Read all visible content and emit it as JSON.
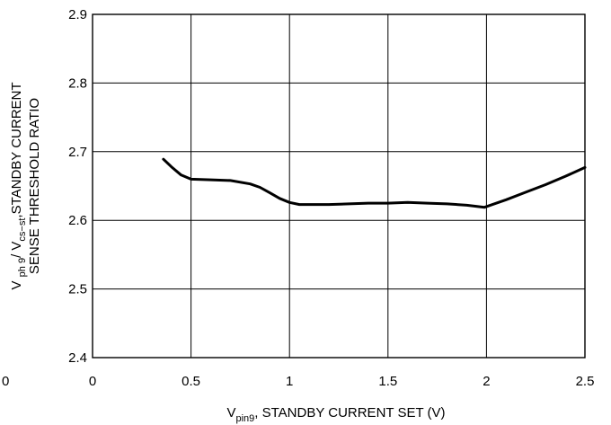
{
  "chart_data": {
    "type": "line",
    "x_ticks": [
      "0",
      "0.5",
      "1",
      "1.5",
      "2",
      "2.5"
    ],
    "y_ticks": [
      "2.4",
      "2.5",
      "2.6",
      "2.7",
      "2.8",
      "2.9"
    ],
    "x_tick_values": [
      0,
      0.5,
      1,
      1.5,
      2,
      2.5
    ],
    "y_tick_values": [
      2.4,
      2.5,
      2.6,
      2.7,
      2.8,
      2.9
    ],
    "stray_label": "0",
    "xlim": [
      0,
      2.5
    ],
    "ylim": [
      2.4,
      2.9
    ],
    "grid": true,
    "xlabel": {
      "pre": "V",
      "sub": "pin9",
      "post": ", STANDBY CURRENT SET (V)"
    },
    "ylabel": {
      "line1": {
        "v1": "V ",
        "sub1": "ph 9",
        "mid": "/ V",
        "sub2": "cs−st",
        "post": ",STANDBY CURRENT"
      },
      "line2": "SENSE THRESHOLD RATIO"
    },
    "series": [
      {
        "x": [
          0.36,
          0.4,
          0.45,
          0.5,
          0.6,
          0.7,
          0.8,
          0.85,
          0.9,
          0.95,
          1.0,
          1.05,
          1.1,
          1.2,
          1.3,
          1.4,
          1.5,
          1.6,
          1.7,
          1.8,
          1.9,
          1.99,
          2.1,
          2.2,
          2.3,
          2.4,
          2.5
        ],
        "y": [
          2.689,
          2.678,
          2.666,
          2.66,
          2.659,
          2.658,
          2.653,
          2.648,
          2.64,
          2.632,
          2.626,
          2.623,
          2.623,
          2.623,
          2.624,
          2.625,
          2.625,
          2.626,
          2.625,
          2.624,
          2.622,
          2.619,
          2.63,
          2.641,
          2.652,
          2.664,
          2.677
        ]
      }
    ]
  }
}
